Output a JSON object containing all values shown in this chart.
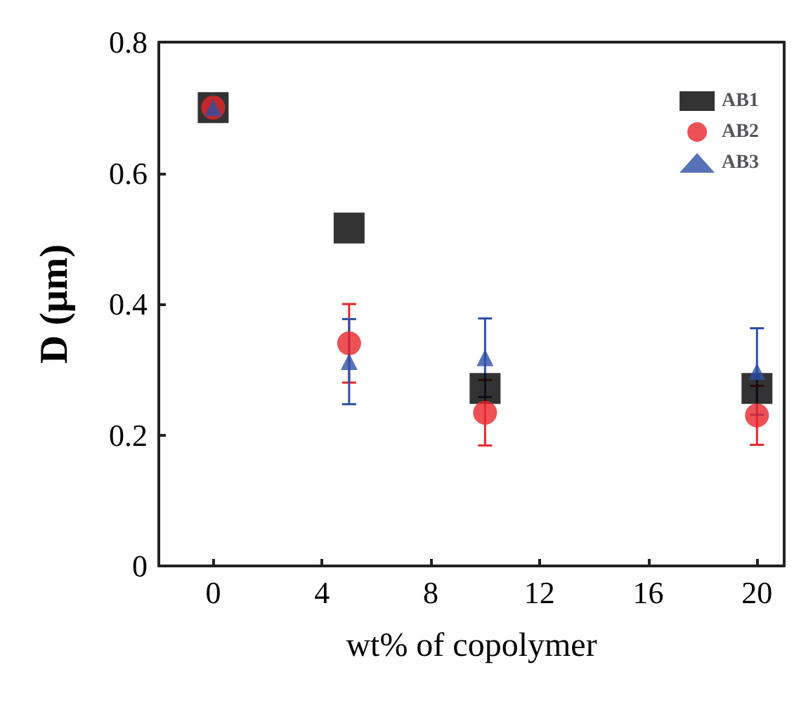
{
  "chart_data": {
    "type": "scatter",
    "xlabel": "wt% of copolymer",
    "ylabel": "D (μm)",
    "xlim": [
      -2,
      21
    ],
    "xticks": [
      0,
      4,
      8,
      12,
      16,
      20
    ],
    "ylim": [
      0,
      0.8
    ],
    "yticks": [
      0,
      0.2,
      0.4,
      0.6,
      0.8
    ],
    "x": [
      0,
      5,
      10,
      20
    ],
    "grid": false,
    "legend": "top right",
    "series": [
      {
        "name": "AB1",
        "color": "#000000",
        "marker": "square",
        "values": [
          0.7,
          0.516,
          0.271,
          0.271
        ]
      },
      {
        "name": "AB2",
        "color": "#e8262a",
        "marker": "circle",
        "values": [
          0.7,
          0.34,
          0.234,
          0.23
        ],
        "errors": [
          null,
          0.06,
          0.05,
          0.045
        ]
      },
      {
        "name": "AB3",
        "color": "#2e4fa6",
        "marker": "triangle",
        "values": [
          0.7,
          0.312,
          0.318,
          0.297
        ],
        "errors": [
          null,
          0.065,
          0.06,
          0.066
        ]
      }
    ]
  }
}
